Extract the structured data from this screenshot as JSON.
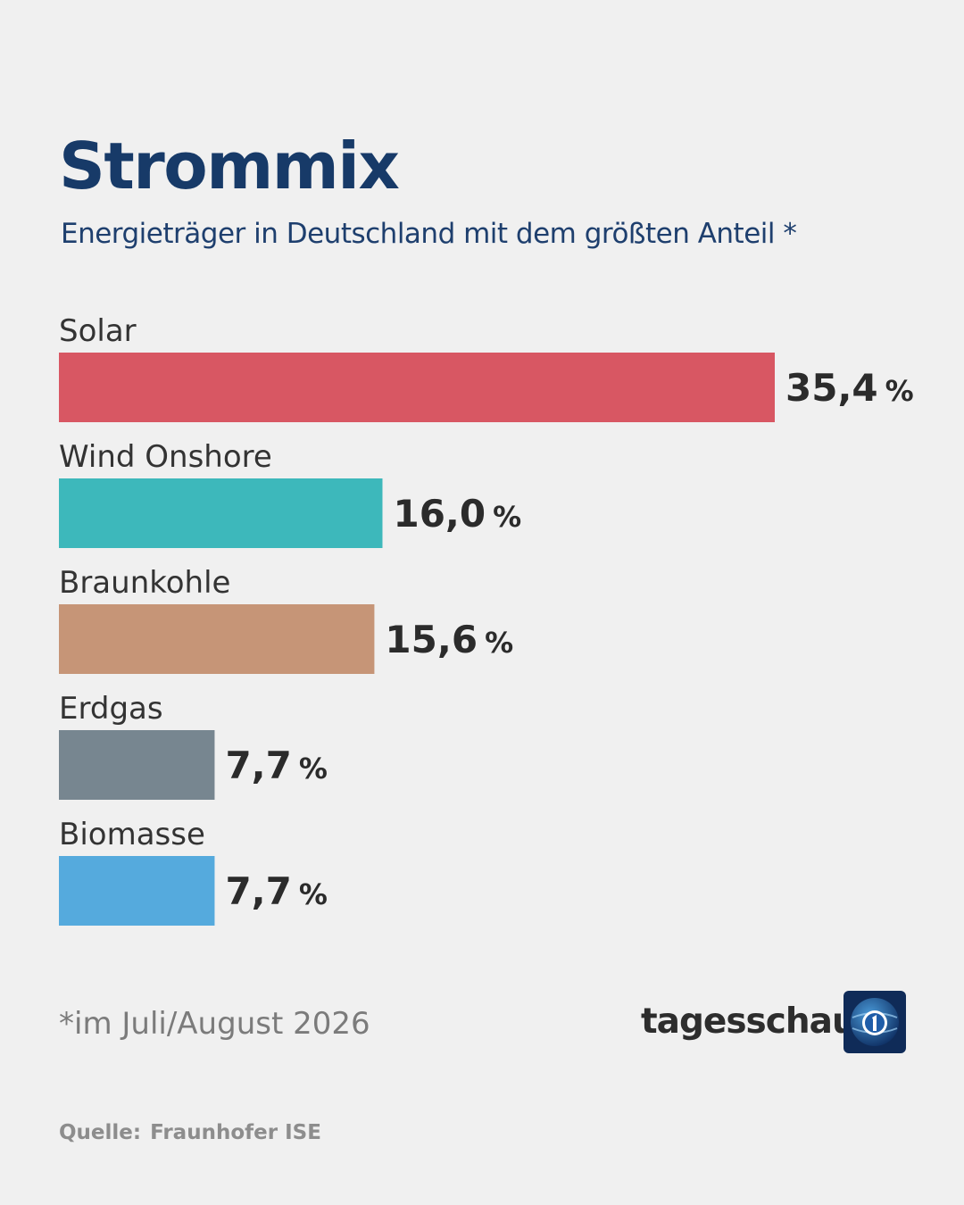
{
  "header": {
    "title": "Strommix",
    "subtitle": "Energieträger in Deutschland mit dem größten Anteil *"
  },
  "chart_data": {
    "type": "bar",
    "orientation": "horizontal",
    "categories": [
      "Solar",
      "Wind Onshore",
      "Braunkohle",
      "Erdgas",
      "Biomasse"
    ],
    "values": [
      35.4,
      16.0,
      15.6,
      7.7,
      7.7
    ],
    "value_labels": [
      "35,4",
      "16,0",
      "15,6",
      "7,7",
      "7,7"
    ],
    "unit": "%",
    "colors": [
      "#d85763",
      "#3db8bb",
      "#c69577",
      "#778690",
      "#55aadd"
    ],
    "grid": false
  },
  "footer": {
    "footnote": "*im Juli/August 2026",
    "brand": "tagesschau",
    "logo_icon": "ard-das-erste-logo-icon",
    "source_label": "Quelle:",
    "source_value": "Fraunhofer ISE"
  }
}
